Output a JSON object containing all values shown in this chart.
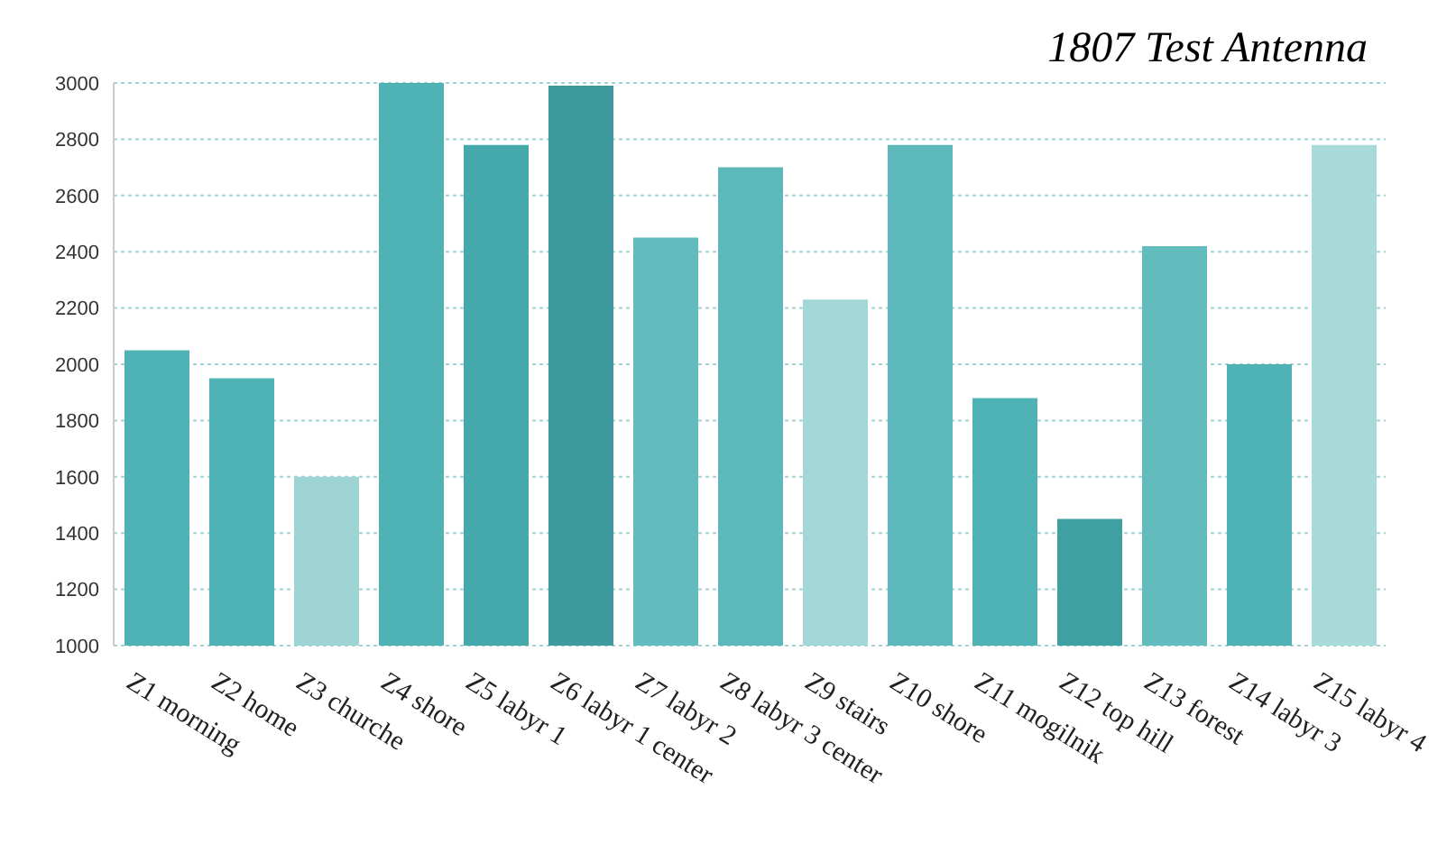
{
  "chart_data": {
    "type": "bar",
    "title": "1807 Test Antenna",
    "categories": [
      "Z1 morning",
      "Z2 home",
      "Z3 churche",
      "Z4 shore",
      "Z5 labyr 1",
      "Z6 labyr 1 center",
      "Z7 labyr 2",
      "Z8 labyr 3 center",
      "Z9 stairs",
      "Z10 shore",
      "Z11 mogilnik",
      "Z12 top hill",
      "Z13 forest",
      "Z14 labyr 3",
      "Z15 labyr 4"
    ],
    "values": [
      2050,
      1950,
      1600,
      3000,
      2780,
      2990,
      2450,
      2700,
      2230,
      2780,
      1880,
      1450,
      2420,
      2000,
      2780
    ],
    "colors": [
      "#4fb3b5",
      "#4fb3b5",
      "#9fd4d4",
      "#4fb3b5",
      "#45a9ab",
      "#3e9a9c",
      "#62bcbe",
      "#5cb8ba",
      "#a3d6d6",
      "#5cb8ba",
      "#4fb3b5",
      "#3f9fa1",
      "#62bcbe",
      "#4fb3b5",
      "#a8dada"
    ],
    "ylim": [
      1000,
      3000
    ],
    "yticks": [
      1000,
      1200,
      1400,
      1600,
      1800,
      2000,
      2200,
      2400,
      2600,
      2800,
      3000
    ],
    "grid": "y"
  }
}
